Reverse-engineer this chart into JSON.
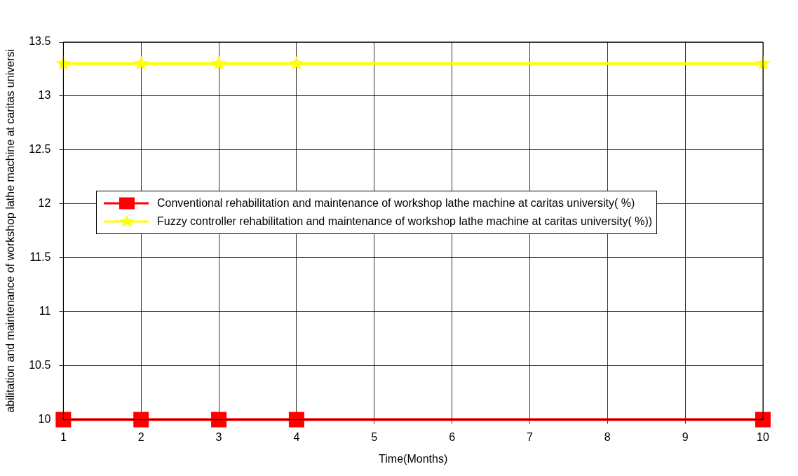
{
  "chart_data": {
    "type": "line",
    "xlabel": "Time(Months)",
    "ylabel": "abilitation and maintenance of workshop lathe machine at caritas universi",
    "x": [
      1,
      2,
      3,
      4,
      10
    ],
    "series": [
      {
        "name": "Conventional rehabilitation and maintenance of workshop lathe machine at caritas university( %)",
        "color": "#ff0000",
        "values": [
          10,
          10,
          10,
          10,
          10
        ],
        "marker": "square"
      },
      {
        "name": "Fuzzy controller rehabilitation and maintenance of workshop lathe machine at caritas university( %))",
        "color": "#ffff00",
        "values": [
          13.3,
          13.3,
          13.3,
          13.3,
          13.3
        ],
        "marker": "star"
      }
    ],
    "xlim": [
      1,
      10
    ],
    "xticks": [
      1,
      2,
      3,
      4,
      5,
      6,
      7,
      8,
      9,
      10
    ],
    "ylim": [
      10,
      13.5
    ],
    "yticks": [
      10,
      10.5,
      11,
      11.5,
      12,
      12.5,
      13,
      13.5
    ],
    "grid": true,
    "legend": "left",
    "line_style": "solid"
  }
}
